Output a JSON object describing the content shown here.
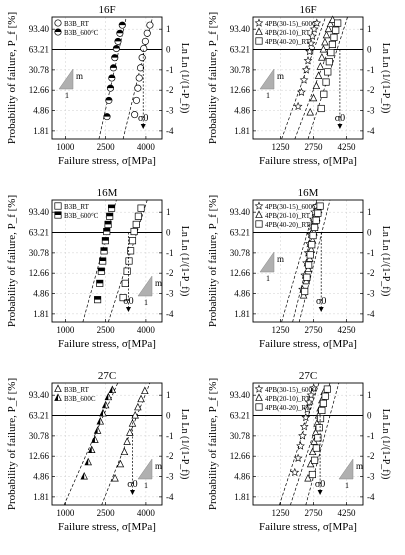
{
  "figure": {
    "common": {
      "ylabel_left": "Probability of failure, P_f [%]",
      "ylabel_right": "Ln Ln (1/(1-P_f))",
      "xlabel": "Failure stress, σ[MPa]",
      "y_ticks_left": [
        "93.40",
        "63.21",
        "30.78",
        "12.66",
        "4.86",
        "1.81"
      ],
      "y_ticks_right": [
        "1",
        "0",
        "-1",
        "-2",
        "-3",
        "-4"
      ],
      "sigma0_label": "σ0",
      "slope_label": "m",
      "slope_run_label": "1"
    }
  },
  "chart_data": [
    {
      "type": "scatter",
      "title": "16F",
      "x_tick_labels": [
        "1000",
        "2500",
        "4000"
      ],
      "xlim": [
        500,
        4600
      ],
      "ylim_lnln": [
        -4.4,
        1.6
      ],
      "series": [
        {
          "name": "B3B_RT",
          "marker": "circle-open",
          "x": [
            3580,
            3650,
            3700,
            3750,
            3800,
            3860,
            3920,
            3980,
            4050,
            4150
          ],
          "y": [
            -3.2,
            -2.5,
            -1.9,
            -1.4,
            -0.9,
            -0.4,
            0.05,
            0.4,
            0.8,
            1.2
          ]
        },
        {
          "name": "B3B_600°C",
          "marker": "circle-half",
          "x": [
            2550,
            2620,
            2680,
            2730,
            2790,
            2840,
            2900,
            2960,
            3030,
            3120
          ],
          "y": [
            -3.3,
            -2.5,
            -1.9,
            -1.4,
            -0.9,
            -0.4,
            0.05,
            0.4,
            0.8,
            1.2
          ]
        }
      ],
      "sigma0_x": 3900,
      "fit_lines": [
        [
          2250,
          -4.4,
          3270,
          1.6
        ],
        [
          3150,
          -4.4,
          4250,
          1.6
        ]
      ],
      "triangle": "left",
      "show_slope_triangle": true,
      "show_sigma0": true
    },
    {
      "type": "scatter",
      "title": "16F",
      "x_tick_labels": [
        "1250",
        "2750",
        "4250"
      ],
      "xlim": [
        0,
        5000
      ],
      "ylim_lnln": [
        -4.4,
        1.6
      ],
      "series": [
        {
          "name": "4PB(30-15)_600C",
          "marker": "star",
          "x": [
            2050,
            2200,
            2320,
            2420,
            2500,
            2570,
            2640,
            2700,
            2780,
            2900
          ],
          "y": [
            -2.8,
            -2.1,
            -1.5,
            -1.0,
            -0.55,
            -0.1,
            0.3,
            0.65,
            1.0,
            1.3
          ]
        },
        {
          "name": "4PB(20-10)_RT",
          "marker": "triangle",
          "x": [
            2600,
            2750,
            2880,
            2980,
            3060,
            3130,
            3200,
            3270,
            3340,
            3430,
            3520,
            3620
          ],
          "y": [
            -3.1,
            -2.4,
            -1.8,
            -1.3,
            -0.85,
            -0.4,
            0,
            0.35,
            0.7,
            1.0,
            1.25,
            1.45
          ]
        },
        {
          "name": "4PB(40-20)_RT",
          "marker": "square",
          "x": [
            3100,
            3220,
            3320,
            3400,
            3470,
            3540,
            3610,
            3680,
            3760,
            3850
          ],
          "y": [
            -2.9,
            -2.2,
            -1.6,
            -1.1,
            -0.6,
            -0.15,
            0.25,
            0.6,
            0.95,
            1.3
          ]
        }
      ],
      "sigma0_x": 3950,
      "fit_lines": [
        [
          1300,
          -4.4,
          3300,
          1.6
        ],
        [
          1900,
          -4.4,
          4000,
          1.6
        ],
        [
          2500,
          -4.4,
          4300,
          1.6
        ]
      ],
      "triangle": "left",
      "show_slope_triangle": true,
      "show_sigma0": true
    },
    {
      "type": "scatter",
      "title": "16M",
      "x_tick_labels": [
        "1000",
        "2500",
        "4000"
      ],
      "xlim": [
        500,
        4600
      ],
      "ylim_lnln": [
        -4.4,
        1.6
      ],
      "series": [
        {
          "name": "B3B_RT",
          "marker": "square-open",
          "x": [
            3150,
            3230,
            3300,
            3370,
            3430,
            3500,
            3560,
            3640,
            3720,
            3820
          ],
          "y": [
            -3.2,
            -2.5,
            -1.9,
            -1.4,
            -0.9,
            -0.4,
            0.05,
            0.4,
            0.8,
            1.2
          ]
        },
        {
          "name": "B3B_600°C",
          "marker": "square-half",
          "x": [
            2200,
            2280,
            2340,
            2390,
            2440,
            2490,
            2540,
            2590,
            2650,
            2720
          ],
          "y": [
            -3.3,
            -2.5,
            -1.9,
            -1.4,
            -0.9,
            -0.4,
            0.05,
            0.4,
            0.8,
            1.2
          ]
        }
      ],
      "sigma0_x": 3350,
      "fit_lines": [
        [
          1650,
          -4.4,
          2900,
          1.6
        ],
        [
          2600,
          -4.4,
          4050,
          1.6
        ]
      ],
      "triangle": "right",
      "show_slope_triangle": true,
      "show_sigma0": true
    },
    {
      "type": "scatter",
      "title": "16M",
      "x_tick_labels": [
        "1250",
        "2750",
        "4250"
      ],
      "xlim": [
        0,
        5000
      ],
      "ylim_lnln": [
        -4.4,
        1.6
      ],
      "series": [
        {
          "name": "4PB(30-15)_600C",
          "marker": "star",
          "x": [
            2250,
            2350,
            2430,
            2500,
            2560,
            2620,
            2680,
            2740,
            2800,
            2880
          ],
          "y": [
            -2.8,
            -2.1,
            -1.5,
            -1.0,
            -0.55,
            -0.1,
            0.3,
            0.65,
            1.0,
            1.3
          ]
        },
        {
          "name": "4PB(20-10)_RT",
          "marker": "triangle",
          "x": [
            2300,
            2420,
            2510,
            2580,
            2650,
            2710,
            2770,
            2830,
            2900,
            2980
          ],
          "y": [
            -3.1,
            -2.4,
            -1.8,
            -1.3,
            -0.85,
            -0.4,
            0,
            0.35,
            0.7,
            1.1
          ]
        },
        {
          "name": "4PB(40-20)_RT",
          "marker": "square",
          "x": [
            2350,
            2450,
            2530,
            2600,
            2670,
            2730,
            2800,
            2870,
            2950,
            3050
          ],
          "y": [
            -2.9,
            -2.2,
            -1.6,
            -1.1,
            -0.6,
            -0.15,
            0.25,
            0.6,
            0.95,
            1.3
          ]
        }
      ],
      "sigma0_x": 3100,
      "fit_lines": [
        [
          1300,
          -4.4,
          2900,
          1.6
        ],
        [
          1800,
          -4.4,
          3200,
          1.6
        ],
        [
          2100,
          -4.4,
          3500,
          1.6
        ]
      ],
      "triangle": "left",
      "show_slope_triangle": true,
      "show_sigma0": true
    },
    {
      "type": "scatter",
      "title": "27C",
      "x_tick_labels": [
        "1000",
        "2500",
        "4000"
      ],
      "xlim": [
        500,
        4600
      ],
      "ylim_lnln": [
        -4.4,
        1.6
      ],
      "series": [
        {
          "name": "B3B_RT",
          "marker": "triangle-open",
          "x": [
            2850,
            3050,
            3200,
            3300,
            3400,
            3500,
            3600,
            3700,
            3820,
            3960
          ],
          "y": [
            -3.1,
            -2.4,
            -1.8,
            -1.3,
            -0.85,
            -0.4,
            0,
            0.4,
            0.8,
            1.2
          ]
        },
        {
          "name": "B3B_600C",
          "marker": "triangle-half",
          "x": [
            1700,
            1850,
            1980,
            2100,
            2200,
            2300,
            2400,
            2500,
            2600,
            2750
          ],
          "y": [
            -3.0,
            -2.3,
            -1.7,
            -1.2,
            -0.75,
            -0.3,
            0.1,
            0.5,
            0.9,
            1.25
          ]
        }
      ],
      "sigma0_x": 3500,
      "fit_lines": [
        [
          950,
          -4.4,
          2950,
          1.6
        ],
        [
          2350,
          -4.4,
          4150,
          1.6
        ]
      ],
      "triangle": "right",
      "show_slope_triangle": true,
      "show_sigma0": true
    },
    {
      "type": "scatter",
      "title": "27C",
      "x_tick_labels": [
        "1250",
        "2750",
        "4250"
      ],
      "xlim": [
        0,
        5000
      ],
      "ylim_lnln": [
        -4.4,
        1.6
      ],
      "series": [
        {
          "name": "4PB(30-15)_600C",
          "marker": "star",
          "x": [
            1900,
            2050,
            2160,
            2250,
            2330,
            2400,
            2470,
            2550,
            2640,
            2760
          ],
          "y": [
            -2.8,
            -2.1,
            -1.5,
            -1.0,
            -0.55,
            -0.1,
            0.3,
            0.65,
            1.0,
            1.35
          ]
        },
        {
          "name": "4PB(20-10)_RT",
          "marker": "triangle",
          "x": [
            2500,
            2620,
            2710,
            2780,
            2850,
            2910,
            2980,
            3050,
            3130,
            3230
          ],
          "y": [
            -3.1,
            -2.4,
            -1.8,
            -1.3,
            -0.85,
            -0.4,
            0,
            0.35,
            0.75,
            1.15
          ]
        },
        {
          "name": "4PB(40-20)_RT",
          "marker": "square",
          "x": [
            2700,
            2800,
            2880,
            2950,
            3010,
            3070,
            3130,
            3200,
            3280,
            3380
          ],
          "y": [
            -2.9,
            -2.2,
            -1.6,
            -1.1,
            -0.6,
            -0.15,
            0.25,
            0.6,
            0.95,
            1.3
          ]
        }
      ],
      "sigma0_x": 3050,
      "fit_lines": [
        [
          1200,
          -4.4,
          3000,
          1.6
        ],
        [
          1700,
          -4.4,
          3500,
          1.6
        ],
        [
          2400,
          -4.4,
          3900,
          1.6
        ]
      ],
      "triangle": "right",
      "show_slope_triangle": true,
      "show_sigma0": true
    }
  ]
}
